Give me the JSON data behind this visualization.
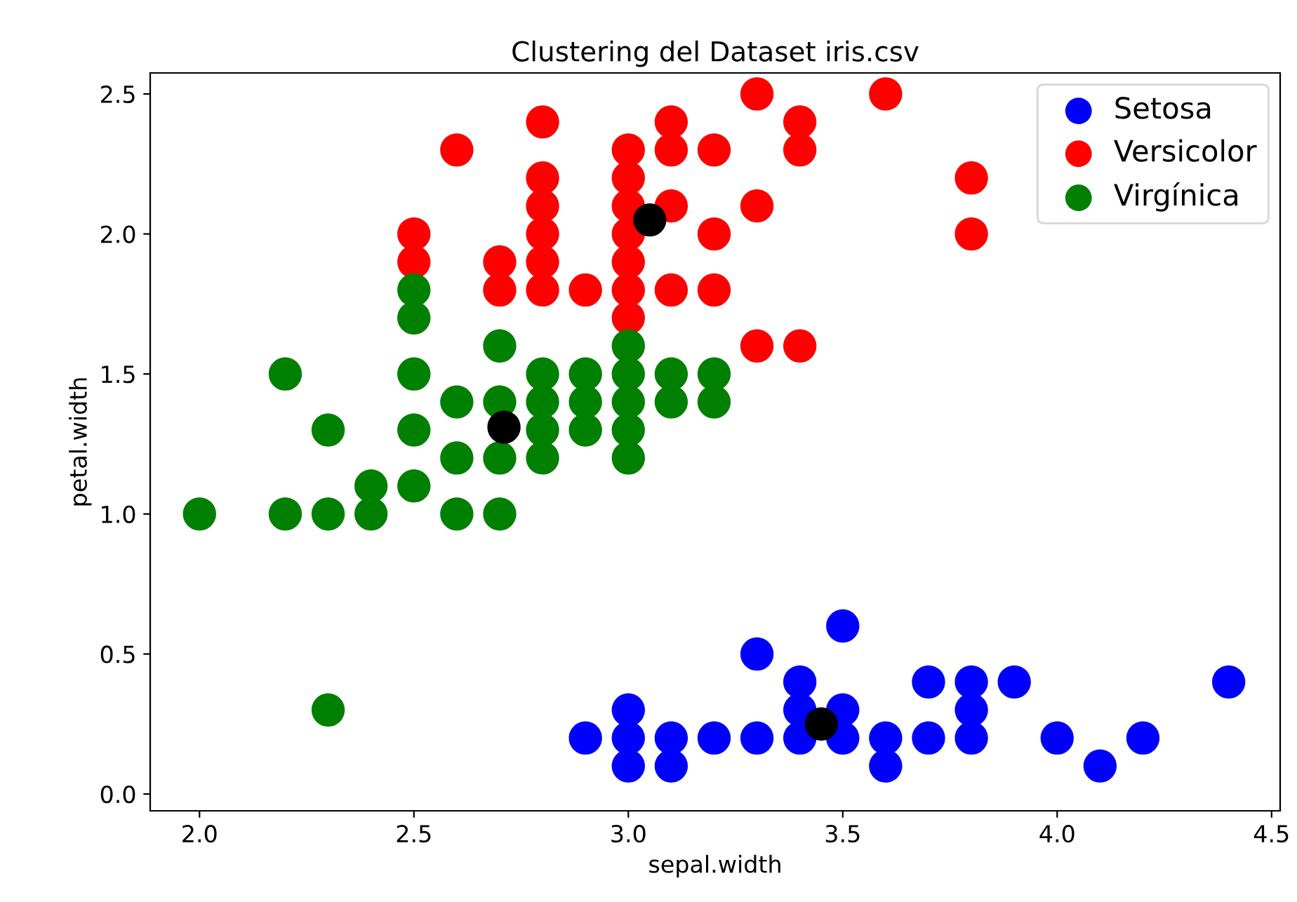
{
  "chart_data": {
    "type": "scatter",
    "title": "Clustering del Dataset iris.csv",
    "xlabel": "sepal.width",
    "ylabel": "petal.width",
    "xlim": [
      1.885,
      4.52
    ],
    "ylim": [
      -0.06,
      2.575
    ],
    "xticks": [
      {
        "value": 2.0,
        "label": "2.0"
      },
      {
        "value": 2.5,
        "label": "2.5"
      },
      {
        "value": 3.0,
        "label": "3.0"
      },
      {
        "value": 3.5,
        "label": "3.5"
      },
      {
        "value": 4.0,
        "label": "4.0"
      },
      {
        "value": 4.5,
        "label": "4.5"
      }
    ],
    "yticks": [
      {
        "value": 0.0,
        "label": "0.0"
      },
      {
        "value": 0.5,
        "label": "0.5"
      },
      {
        "value": 1.0,
        "label": "1.0"
      },
      {
        "value": 1.5,
        "label": "1.5"
      },
      {
        "value": 2.0,
        "label": "2.0"
      },
      {
        "value": 2.5,
        "label": "2.5"
      }
    ],
    "grid": false,
    "legend": "top right",
    "marker": "circle",
    "series": [
      {
        "name": "Setosa",
        "color": "#0000ff",
        "x": [
          2.9,
          3.0,
          3.0,
          3.0,
          3.1,
          3.1,
          3.2,
          3.3,
          3.3,
          3.4,
          3.4,
          3.4,
          3.5,
          3.5,
          3.5,
          3.6,
          3.6,
          3.7,
          3.7,
          3.8,
          3.8,
          3.8,
          3.9,
          4.0,
          4.1,
          4.2,
          4.4
        ],
        "values": [
          0.2,
          0.1,
          0.2,
          0.3,
          0.1,
          0.2,
          0.2,
          0.2,
          0.5,
          0.2,
          0.3,
          0.4,
          0.2,
          0.3,
          0.6,
          0.1,
          0.2,
          0.2,
          0.4,
          0.2,
          0.3,
          0.4,
          0.4,
          0.2,
          0.1,
          0.2,
          0.4
        ]
      },
      {
        "name": "Versicolor",
        "color": "#ff0000",
        "x": [
          2.5,
          2.5,
          2.6,
          2.7,
          2.7,
          2.8,
          2.8,
          2.8,
          2.8,
          2.8,
          2.8,
          2.9,
          3.0,
          3.0,
          3.0,
          3.0,
          3.0,
          3.0,
          3.0,
          3.1,
          3.1,
          3.1,
          3.1,
          3.2,
          3.2,
          3.2,
          3.3,
          3.3,
          3.3,
          3.4,
          3.4,
          3.4,
          3.6,
          3.8,
          3.8
        ],
        "values": [
          1.9,
          2.0,
          2.3,
          1.8,
          1.9,
          1.8,
          1.9,
          2.0,
          2.1,
          2.2,
          2.4,
          1.8,
          1.7,
          1.8,
          1.9,
          2.0,
          2.1,
          2.2,
          2.3,
          1.8,
          2.1,
          2.3,
          2.4,
          1.8,
          2.0,
          2.3,
          1.6,
          2.1,
          2.5,
          1.6,
          2.3,
          2.4,
          2.5,
          2.0,
          2.2
        ]
      },
      {
        "name": "Virgínica",
        "color": "#008000",
        "x": [
          2.0,
          2.2,
          2.2,
          2.3,
          2.3,
          2.3,
          2.4,
          2.4,
          2.5,
          2.5,
          2.5,
          2.5,
          2.5,
          2.6,
          2.6,
          2.6,
          2.7,
          2.7,
          2.7,
          2.7,
          2.8,
          2.8,
          2.8,
          2.8,
          2.9,
          2.9,
          2.9,
          3.0,
          3.0,
          3.0,
          3.0,
          3.0,
          3.1,
          3.1,
          3.2,
          3.2
        ],
        "values": [
          1.0,
          1.0,
          1.5,
          0.3,
          1.0,
          1.3,
          1.0,
          1.1,
          1.1,
          1.3,
          1.5,
          1.7,
          1.8,
          1.0,
          1.2,
          1.4,
          1.0,
          1.2,
          1.4,
          1.6,
          1.2,
          1.3,
          1.4,
          1.5,
          1.3,
          1.4,
          1.5,
          1.2,
          1.3,
          1.4,
          1.5,
          1.6,
          1.4,
          1.5,
          1.4,
          1.5
        ]
      },
      {
        "color": "#000000",
        "x": [
          3.45,
          3.05,
          2.71
        ],
        "values": [
          0.25,
          2.05,
          1.31
        ]
      }
    ]
  }
}
